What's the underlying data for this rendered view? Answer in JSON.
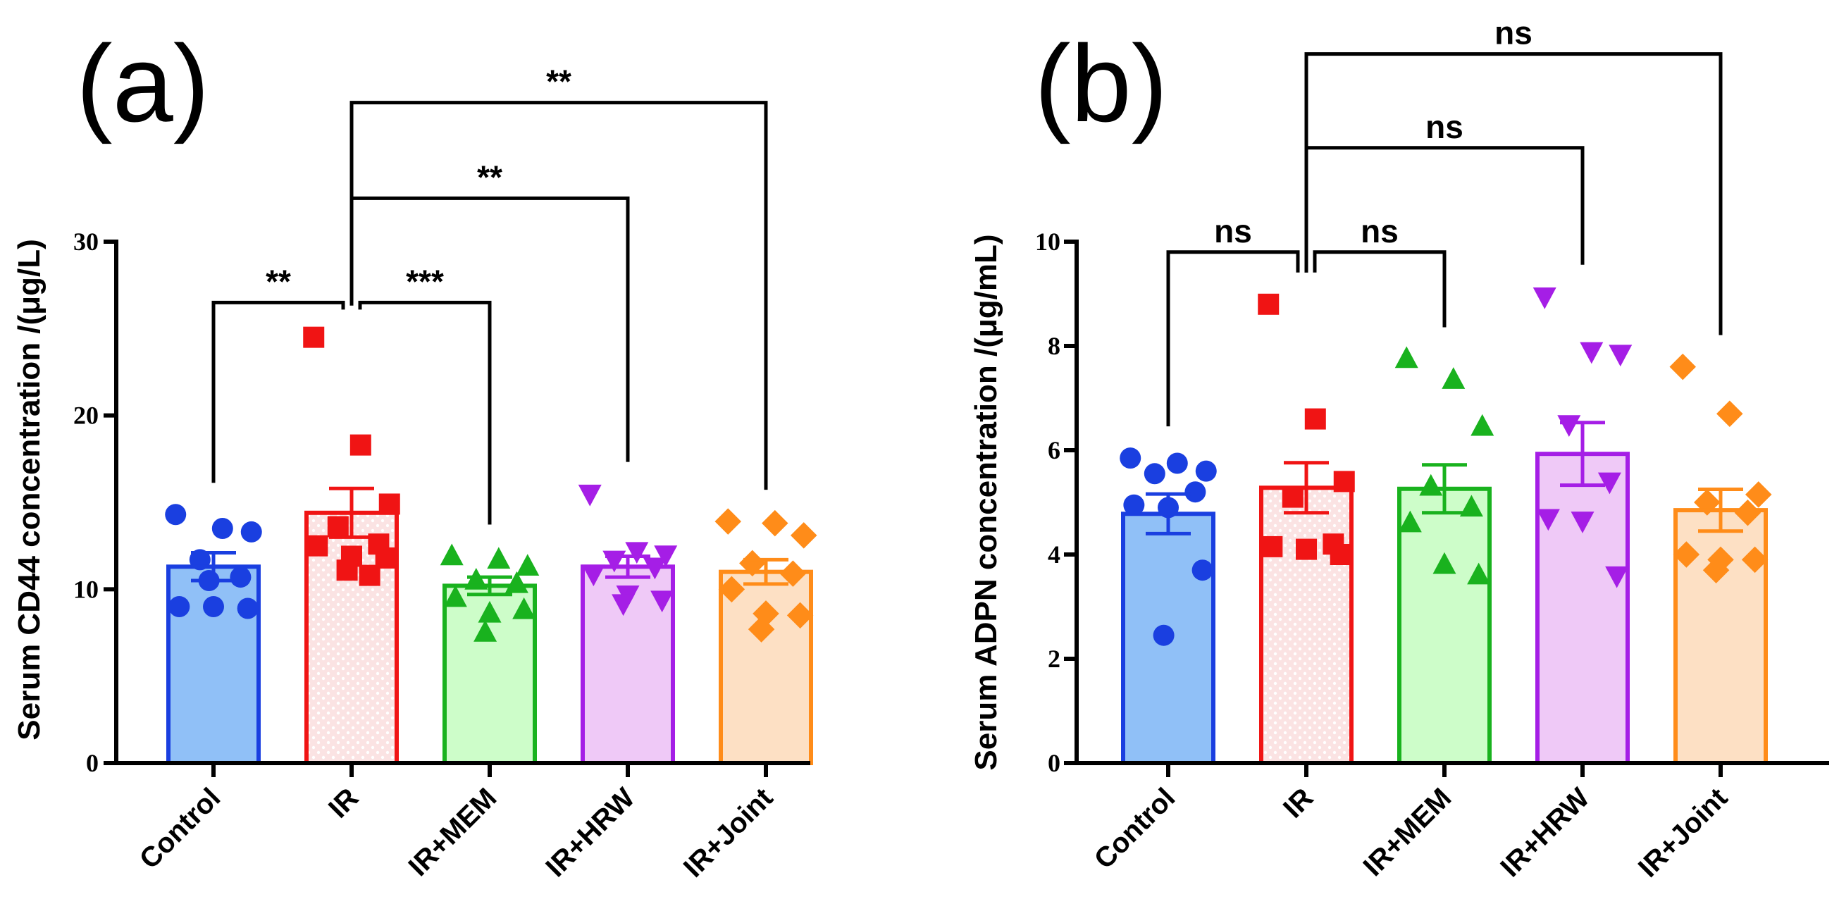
{
  "chart_data": [
    {
      "type": "bar",
      "panel_label": "(a)",
      "title": "",
      "xlabel": "",
      "ylabel": "Serum CD44 concentration /(μg/L)",
      "ylim": [
        0,
        30
      ],
      "yticks": [
        0,
        10,
        20,
        30
      ],
      "categories": [
        "Control",
        "IR",
        "IR+MEM",
        "IR+HRW",
        "IR+Joint"
      ],
      "means": [
        11.3,
        14.4,
        10.2,
        11.3,
        11.0
      ],
      "sem": [
        0.8,
        1.4,
        0.5,
        0.6,
        0.7
      ],
      "points": [
        [
          14.3,
          13.5,
          13.3,
          11.7,
          10.7,
          9.0,
          9.0,
          8.9,
          10.5
        ],
        [
          24.5,
          18.3,
          14.9,
          13.6,
          12.6,
          12.5,
          11.9,
          11.8,
          11.1,
          10.8
        ],
        [
          11.9,
          11.7,
          11.3,
          10.5,
          10.3,
          9.5,
          8.6,
          8.8,
          7.5
        ],
        [
          15.5,
          12.2,
          12.0,
          11.7,
          11.3,
          10.9,
          9.7,
          9.4,
          9.2
        ],
        [
          13.9,
          13.8,
          13.1,
          11.5,
          10.9,
          10.0,
          8.6,
          8.5,
          7.7
        ]
      ],
      "colors": [
        "#1a3fe0",
        "#f01414",
        "#19b21e",
        "#a51ee6",
        "#ff8c19"
      ],
      "fills": [
        "#90c0f7",
        "#fbe3e3",
        "#cdfdc9",
        "#efc9f7",
        "#fde0c4"
      ],
      "markers": [
        "circle",
        "square",
        "triangle-up",
        "triangle-down",
        "diamond"
      ],
      "significance": [
        {
          "from": 0,
          "to": 1,
          "label": "**",
          "level": 26.5
        },
        {
          "from": 1,
          "to": 2,
          "label": "***",
          "level": 26.5
        },
        {
          "from": 1,
          "to": 3,
          "label": "**",
          "level": 32.5
        },
        {
          "from": 1,
          "to": 4,
          "label": "**",
          "level": 38.0
        }
      ]
    },
    {
      "type": "bar",
      "panel_label": "(b)",
      "title": "",
      "xlabel": "",
      "ylabel": "Serum ADPN concentration /(μg/mL)",
      "ylim": [
        0,
        10
      ],
      "yticks": [
        0,
        2,
        4,
        6,
        8,
        10
      ],
      "categories": [
        "Control",
        "IR",
        "IR+MEM",
        "IR+HRW",
        "IR+Joint"
      ],
      "means": [
        4.78,
        5.28,
        5.26,
        5.93,
        4.85
      ],
      "sem": [
        0.38,
        0.48,
        0.46,
        0.6,
        0.4
      ],
      "points": [
        [
          5.85,
          5.75,
          5.6,
          5.55,
          5.2,
          4.95,
          4.9,
          3.7,
          2.45
        ],
        [
          8.8,
          6.6,
          5.4,
          5.1,
          4.2,
          4.15,
          4.1,
          4.0
        ],
        [
          7.75,
          7.35,
          6.45,
          5.3,
          4.9,
          4.6,
          3.8,
          3.6
        ],
        [
          8.95,
          7.9,
          7.85,
          6.5,
          5.4,
          4.7,
          4.65,
          3.6
        ],
        [
          7.6,
          6.7,
          5.15,
          5.0,
          4.8,
          4.0,
          3.9,
          3.9,
          3.7
        ]
      ],
      "colors": [
        "#1a3fe0",
        "#f01414",
        "#19b21e",
        "#a51ee6",
        "#ff8c19"
      ],
      "fills": [
        "#90c0f7",
        "#fbe3e3",
        "#cdfdc9",
        "#efc9f7",
        "#fde0c4"
      ],
      "markers": [
        "circle",
        "square",
        "triangle-up",
        "triangle-down",
        "diamond"
      ],
      "significance": [
        {
          "from": 0,
          "to": 1,
          "label": "ns",
          "level": 9.8
        },
        {
          "from": 1,
          "to": 2,
          "label": "ns",
          "level": 9.8
        },
        {
          "from": 1,
          "to": 3,
          "label": "ns",
          "level": 11.8
        },
        {
          "from": 1,
          "to": 4,
          "label": "ns",
          "level": 13.6
        }
      ]
    }
  ]
}
